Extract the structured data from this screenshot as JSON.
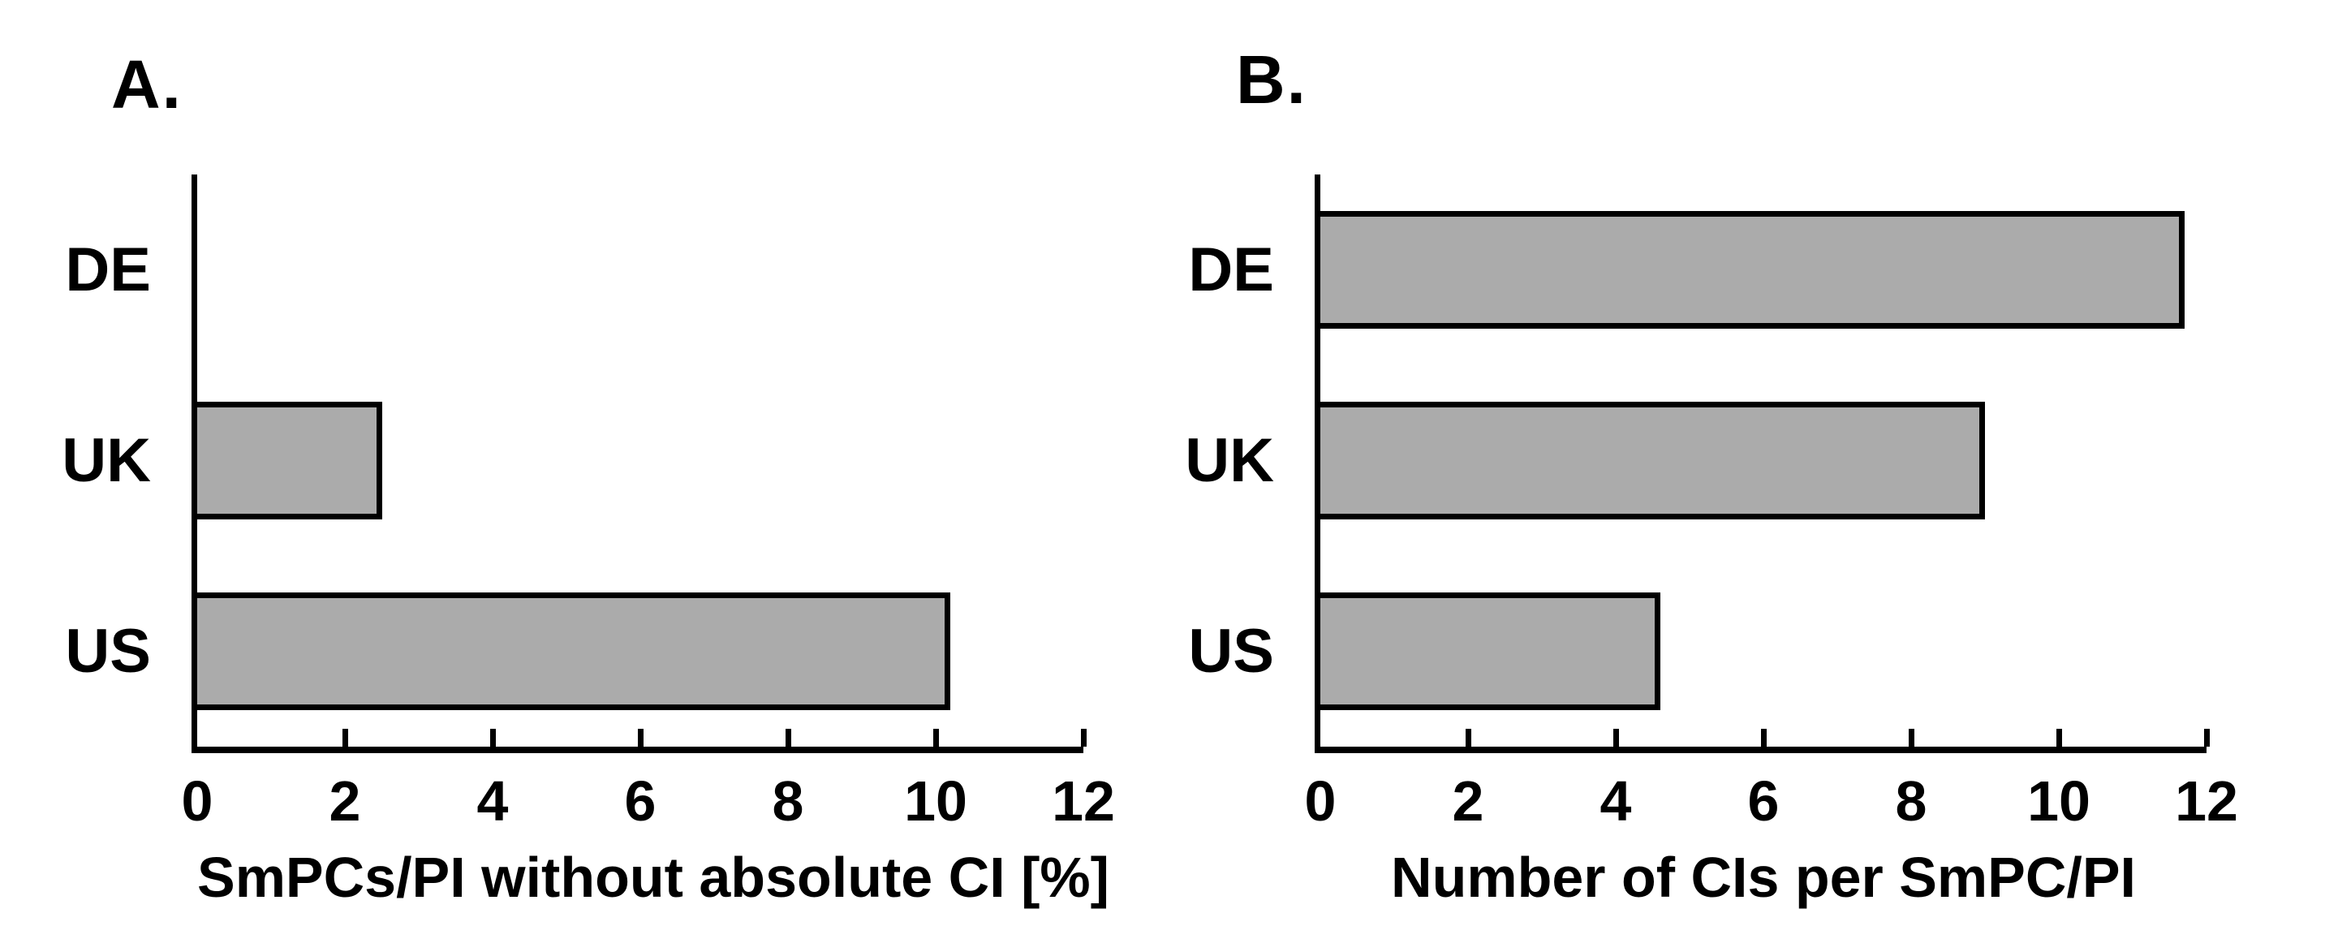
{
  "figure": {
    "background": "#FFFFFF"
  },
  "colors": {
    "bar_fill": "#ABABAB",
    "bar_border": "#000000",
    "axis": "#000000",
    "text": "#000000"
  },
  "chart_data": [
    {
      "type": "bar",
      "orientation": "horizontal",
      "panel_label": "A.",
      "categories": [
        "DE",
        "UK",
        "US"
      ],
      "values": [
        0,
        2.5,
        10.2
      ],
      "xlabel": "SmPCs/PI without absolute CI [%]",
      "xticks": [
        0,
        2,
        4,
        6,
        8,
        10,
        12
      ],
      "xlim": [
        0,
        12
      ],
      "grid": false,
      "legend": null
    },
    {
      "type": "bar",
      "orientation": "horizontal",
      "panel_label": "B.",
      "categories": [
        "DE",
        "UK",
        "US"
      ],
      "values": [
        11.7,
        9.0,
        4.6
      ],
      "xlabel": "Number of CIs per SmPC/PI",
      "xticks": [
        0,
        2,
        4,
        6,
        8,
        10,
        12
      ],
      "xlim": [
        0,
        12
      ],
      "grid": false,
      "legend": null
    }
  ]
}
